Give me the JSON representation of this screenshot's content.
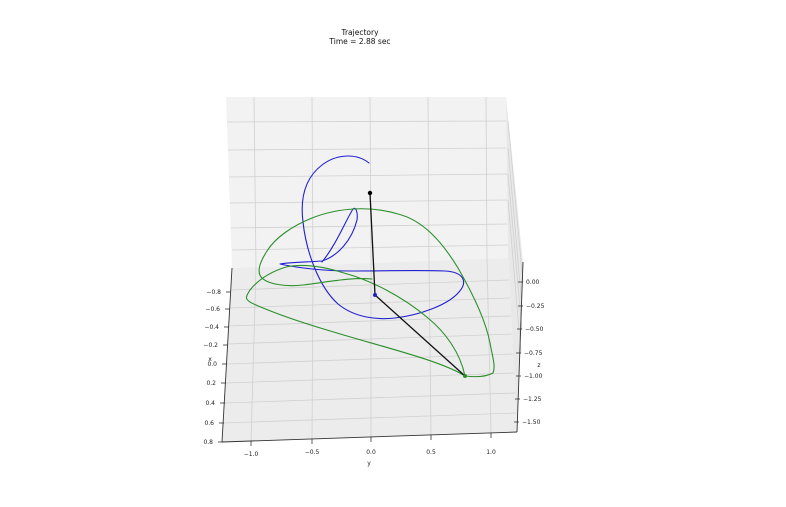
{
  "chart_data": {
    "type": "line",
    "title": "Trajectory",
    "subtitle": "Time = 2.88 sec",
    "xlabel": "x",
    "ylabel": "y",
    "zlabel": "z",
    "xticks": [
      "−0.8",
      "−0.6",
      "−0.4",
      "−0.2",
      "0.0",
      "0.2",
      "0.4",
      "0.6",
      "0.8"
    ],
    "yticks": [
      "−1.0",
      "−0.5",
      "0.0",
      "0.5",
      "1.0"
    ],
    "zticks": [
      "0.00",
      "−0.25",
      "−0.50",
      "−0.75",
      "−1.00",
      "−1.25",
      "−1.50"
    ],
    "grid": true,
    "colors": {
      "trajectory_1": "#1f1fd0",
      "trajectory_2": "#2a8f2a",
      "pendulum": "#000000"
    },
    "series": [
      {
        "color": "#1f1fd0"
      },
      {
        "color": "#2a8f2a"
      }
    ],
    "pendulum": {
      "pivot_xyz": [
        0.0,
        0.0,
        0.0
      ],
      "mass1_xyz": [
        0.0,
        0.0,
        -0.8
      ],
      "mass2_xyz": [
        0.5,
        0.8,
        -1.3
      ]
    }
  }
}
